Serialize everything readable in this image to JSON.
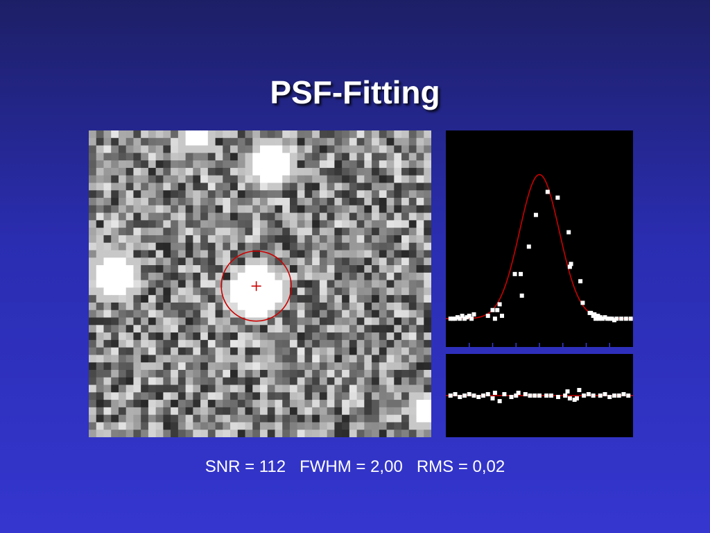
{
  "slide": {
    "title": "PSF-Fitting"
  },
  "stats": {
    "snr": "SNR = 112",
    "fwhm": "FWHM = 2,00",
    "rms": "RMS = 0,02"
  },
  "colors": {
    "fit_line": "#cc0000",
    "points": "#ffffff",
    "panel_bg": "#000000",
    "tick_color": "#3a3ad0"
  },
  "image_panel": {
    "grid": [
      46,
      41
    ],
    "stars": [
      {
        "col": 22,
        "row": 21,
        "radius": 3.2
      },
      {
        "col": 3,
        "row": 19,
        "radius": 2.8
      },
      {
        "col": 24,
        "row": 4,
        "radius": 2.4
      },
      {
        "col": 14,
        "row": 0,
        "radius": 2.0
      },
      {
        "col": 45,
        "row": 37,
        "radius": 2.0
      }
    ],
    "marker": {
      "col": 22.5,
      "row": 20.8
    },
    "circle_radius_cells": 4.7
  },
  "chart_data": [
    {
      "type": "scatter",
      "title": "",
      "xlabel": "",
      "ylabel": "",
      "xlim": [
        -4,
        4
      ],
      "ylim": [
        -0.1,
        1.2
      ],
      "x_ticks": [
        -3,
        -2,
        -1,
        0,
        1,
        2,
        3
      ],
      "fit": {
        "model": "gaussian",
        "amplitude": 1.0,
        "center": 0.0,
        "sigma": 0.85
      },
      "series": [
        {
          "x": [
            -3.8,
            -3.7,
            -3.6,
            -3.5,
            -3.4,
            -3.3,
            -3.2,
            -3.1,
            -3.0,
            -2.9,
            -2.8,
            -2.2,
            -2.0,
            -1.9,
            -1.8,
            -1.7,
            -1.6,
            -1.05,
            -0.75,
            -0.8,
            -0.45,
            -0.15,
            0.35,
            0.78,
            1.25,
            1.3,
            1.35,
            1.75,
            1.85,
            2.15,
            2.2,
            2.3,
            2.35,
            2.4,
            2.5,
            2.55,
            2.6,
            2.7,
            2.8,
            2.9,
            3.0,
            3.1,
            3.2,
            3.3,
            3.5,
            3.7,
            3.9
          ],
          "y": [
            0.0,
            0.0,
            0.0,
            0.01,
            0.0,
            0.02,
            0.0,
            0.01,
            0.02,
            0.0,
            0.03,
            0.02,
            0.06,
            0.0,
            0.06,
            0.1,
            0.02,
            0.31,
            0.16,
            0.31,
            0.5,
            0.72,
            0.88,
            0.84,
            0.6,
            0.36,
            0.38,
            0.26,
            0.11,
            0.04,
            0.04,
            0.02,
            0.03,
            0.0,
            0.02,
            0.0,
            0.01,
            0.0,
            0.01,
            0.0,
            0.0,
            0.0,
            -0.01,
            0.0,
            0.0,
            0.0,
            0.0
          ]
        }
      ]
    },
    {
      "type": "scatter",
      "title": "",
      "xlabel": "",
      "ylabel": "",
      "xlim": [
        -4,
        4
      ],
      "ylim": [
        -0.2,
        0.2
      ],
      "fit": {
        "model": "zero"
      },
      "series": [
        {
          "x": [
            -3.8,
            -3.6,
            -3.4,
            -3.2,
            -3.0,
            -2.8,
            -2.6,
            -2.4,
            -2.2,
            -2.0,
            -1.9,
            -1.7,
            -1.5,
            -1.2,
            -1.0,
            -0.9,
            -0.6,
            -0.4,
            -0.2,
            0.0,
            0.3,
            0.5,
            0.8,
            1.1,
            1.3,
            1.5,
            1.7,
            1.9,
            2.1,
            2.3,
            2.6,
            2.8,
            3.0,
            3.2,
            3.4,
            3.6,
            3.8,
            1.2,
            1.6
          ],
          "y": [
            0.0,
            0.01,
            -0.01,
            0.0,
            0.01,
            0.0,
            -0.01,
            0.0,
            0.01,
            -0.02,
            0.02,
            -0.04,
            0.01,
            -0.01,
            0.0,
            0.02,
            0.01,
            0.0,
            0.0,
            0.0,
            0.0,
            0.0,
            -0.01,
            0.0,
            -0.02,
            -0.03,
            0.04,
            0.0,
            0.01,
            0.0,
            0.0,
            0.01,
            -0.01,
            0.0,
            0.0,
            0.01,
            0.0,
            0.03,
            -0.02
          ]
        }
      ]
    }
  ]
}
